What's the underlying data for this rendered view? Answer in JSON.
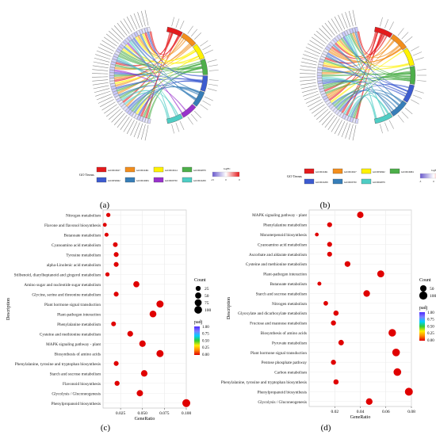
{
  "panel_labels": [
    "(a)",
    "(b)",
    "(c)",
    "(d)"
  ],
  "chart_data": [
    {
      "type": "chord",
      "panel": "(a)",
      "segment_colors": [
        "#e41a1c",
        "#f28e1c",
        "#fff200",
        "#4daf4a",
        "#3c5bd0",
        "#377eb8",
        "#9932cc",
        "#4ecdc4"
      ],
      "legend": {
        "title": "GO Terms",
        "terms": [
          "GO:0016627",
          "GO:0016491",
          "GO:0016614",
          "GO:0004879",
          "GO:0050662",
          "GO:0016684",
          "GO:0003700",
          "GO:0016209"
        ],
        "logfc_title": "logFC",
        "logfc_ticks": [
          "-15",
          "0",
          "0"
        ],
        "logfc_colors": [
          "#6a5acd",
          "#ffffff",
          "#e41a1c"
        ]
      }
    },
    {
      "type": "chord",
      "panel": "(b)",
      "segment_colors": [
        "#e41a1c",
        "#f28e1c",
        "#fff200",
        "#4daf4a",
        "#3c5bd0",
        "#377eb8",
        "#4ecdc4"
      ],
      "legend": {
        "title": "GO Terms",
        "terms": [
          "GO:0016491",
          "GO:0016627",
          "GO:0050662",
          "GO:0016684",
          "GO:0016209",
          "GO:0003700",
          "GO:0004879"
        ],
        "logfc_title": "logFC",
        "logfc_ticks": [
          "-5",
          "0",
          "25"
        ],
        "logfc_colors": [
          "#6a5acd",
          "#ffffff",
          "#e41a1c"
        ]
      }
    },
    {
      "type": "scatter",
      "panel": "(c)",
      "xlabel": "GeneRatio",
      "ylabel": "Description",
      "xlim": [
        0.005,
        0.1
      ],
      "xticks": [
        0.025,
        0.05,
        0.075,
        0.1
      ],
      "xtick_labels": [
        "0.025",
        "0.050",
        "0.075",
        "0.100"
      ],
      "grid": true,
      "categories": [
        "Phenylpropanoid biosynthesis",
        "Glycolysis / Gluconeogenesis",
        "Flavonoid biosynthesis",
        "Starch and sucrose metabolism",
        "Phenylalanine, tyrosine and tryptophan biosynthesis",
        "Biosynthesis of amino acids",
        "MAPK signaling pathway - plant",
        "Cysteine and methionine metabolism",
        "Phenylalanine metabolism",
        "Plant-pathogen interaction",
        "Plant hormone signal transduction",
        "Glycine, serine and threonine metabolism",
        "Amino sugar and nucleotide sugar metabolism",
        "Stilbenoid, diarylheptanoid and gingerol metabolism",
        "alpha-Linolenic acid metabolism",
        "Tyrosine metabolism",
        "Cyanoamino acid metabolism",
        "Butanoate metabolism",
        "Flavone and flavonol biosynthesis",
        "Nitrogen metabolism"
      ],
      "x": [
        0.1,
        0.047,
        0.021,
        0.052,
        0.02,
        0.07,
        0.05,
        0.036,
        0.017,
        0.062,
        0.07,
        0.02,
        0.043,
        0.01,
        0.02,
        0.02,
        0.019,
        0.009,
        0.007,
        0.011
      ],
      "count": [
        110,
        55,
        25,
        60,
        22,
        80,
        60,
        40,
        20,
        70,
        80,
        22,
        50,
        12,
        22,
        22,
        20,
        10,
        8,
        12
      ],
      "padj": [
        0.0,
        0.0,
        0.0,
        0.0,
        0.0,
        0.0,
        0.0,
        0.0,
        0.0,
        0.0,
        0.0,
        0.0,
        0.0,
        0.0,
        0.0,
        0.0,
        0.0,
        0.0,
        0.0,
        0.0
      ],
      "size_legend": {
        "title": "Count",
        "values": [
          25,
          50,
          75,
          100
        ]
      },
      "color_legend": {
        "title": "padj",
        "ticks": [
          "1.00",
          "0.75",
          "0.50",
          "0.25",
          "0.00"
        ],
        "colors": [
          "#4b2bff",
          "#7f7fff",
          "#00d0ff",
          "#33cc33",
          "#ffee00",
          "#ff8800",
          "#e00000"
        ]
      }
    },
    {
      "type": "scatter",
      "panel": "(d)",
      "xlabel": "GeneRatio",
      "ylabel": "Description",
      "xlim": [
        0.0,
        0.08
      ],
      "xticks": [
        0.02,
        0.04,
        0.06,
        0.08
      ],
      "xtick_labels": [
        "0.02",
        "0.04",
        "0.06",
        "0.08"
      ],
      "grid": true,
      "categories": [
        "Glycolysis / Gluconeogenesis",
        "Phenylpropanoid biosynthesis",
        "Phenylalanine, tyrosine and tryptophan biosynthesis",
        "Carbon metabolism",
        "Pentose phosphate pathway",
        "Plant hormone signal transduction",
        "Pyruvate metabolism",
        "Biosynthesis of amino acids",
        "Fructose and mannose metabolism",
        "Glyoxylate and dicarboxylate metabolism",
        "Nitrogen metabolism",
        "Starch and sucrose metabolism",
        "Butanoate metabolism",
        "Plant-pathogen interaction",
        "Cysteine and methionine metabolism",
        "Ascorbate and aldarate metabolism",
        "Cyanoamino acid metabolism",
        "Monoterpenoid biosynthesis",
        "Phenylalanine metabolism",
        "MAPK signaling pathway - plant"
      ],
      "x": [
        0.047,
        0.078,
        0.021,
        0.069,
        0.019,
        0.068,
        0.025,
        0.065,
        0.019,
        0.021,
        0.013,
        0.045,
        0.008,
        0.056,
        0.03,
        0.016,
        0.016,
        0.006,
        0.016,
        0.04
      ],
      "count": [
        55,
        95,
        25,
        85,
        22,
        85,
        30,
        80,
        22,
        25,
        15,
        55,
        8,
        65,
        35,
        20,
        20,
        6,
        20,
        50
      ],
      "padj": [
        0.0,
        0.0,
        0.0,
        0.0,
        0.0,
        0.0,
        0.0,
        0.0,
        0.0,
        0.0,
        0.0,
        0.0,
        0.0,
        0.0,
        0.0,
        0.0,
        0.0,
        0.0,
        0.0,
        0.0
      ],
      "size_legend": {
        "title": "Count",
        "values": [
          50,
          100
        ]
      },
      "color_legend": {
        "title": "padj",
        "ticks": [
          "1.00",
          "0.75",
          "0.50",
          "0.25",
          "0.00"
        ],
        "colors": [
          "#4b2bff",
          "#7f7fff",
          "#00d0ff",
          "#33cc33",
          "#ffee00",
          "#ff8800",
          "#e00000"
        ]
      }
    }
  ]
}
